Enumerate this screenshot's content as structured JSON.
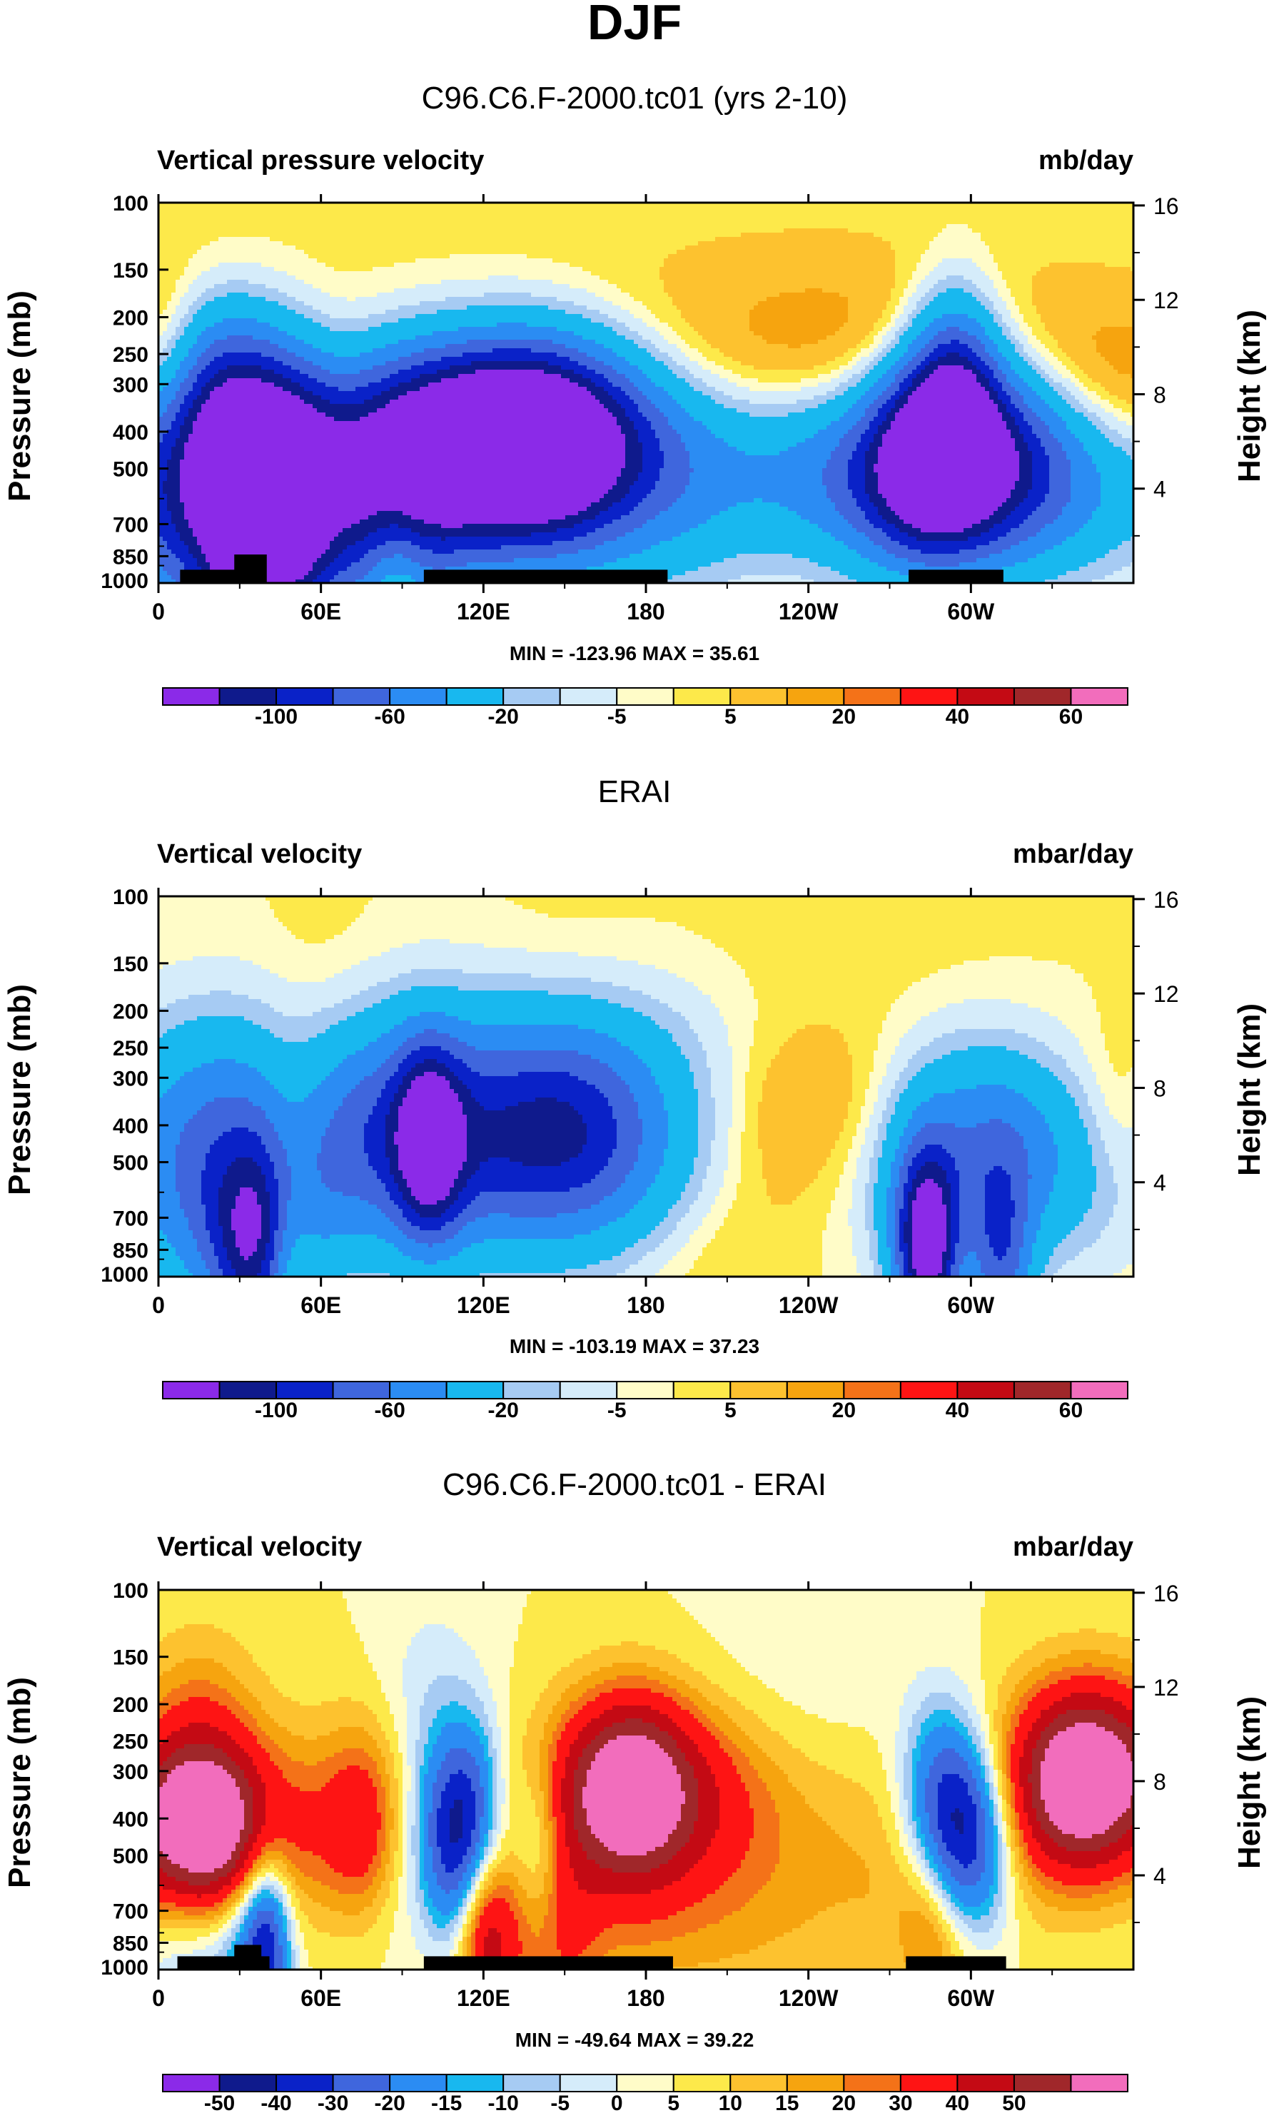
{
  "figure_title": "DJF",
  "chart_data": [
    {
      "type": "heatmap",
      "title": "C96.C6.F-2000.tc01 (yrs 2-10)",
      "left_label": "Vertical pressure velocity",
      "units": "mb/day",
      "ylabel": "Pressure (mb)",
      "ylabel_right": "Height (km)",
      "xlabel": "",
      "x_ticks": [
        "0",
        "60E",
        "120E",
        "180",
        "120W",
        "60W"
      ],
      "x_tick_values": [
        0,
        60,
        120,
        180,
        240,
        300
      ],
      "xlim": [
        0,
        360
      ],
      "y_ticks": [
        "100",
        "150",
        "200",
        "250",
        "300",
        "400",
        "500",
        "700",
        "850",
        "1000"
      ],
      "y_tick_values": [
        100,
        150,
        200,
        250,
        300,
        400,
        500,
        700,
        850,
        1000
      ],
      "ylim": [
        1000,
        100
      ],
      "y_right_ticks": [
        "16",
        "12",
        "8",
        "4"
      ],
      "y_right_values": [
        16,
        12,
        8,
        4
      ],
      "minmax": "MIN = -123.96  MAX =  35.61",
      "min": -123.96,
      "max": 35.61,
      "colorbar_labels": [
        "-100",
        "-60",
        "-20",
        "-5",
        "5",
        "20",
        "40",
        "60"
      ],
      "colorbar_colors": [
        "#8b2ae8",
        "#0f1a8c",
        "#0a22c8",
        "#3f66dd",
        "#2b8cf3",
        "#18b8ef",
        "#a6cbf3",
        "#d5ecfa",
        "#fffcc8",
        "#fde94a",
        "#fdc22f",
        "#f6a40f",
        "#f47218",
        "#fe1414",
        "#c40a14",
        "#a0272a",
        "#f26dbc"
      ],
      "colorbar_rows": 1,
      "blobs": [
        [
          40,
          450,
          75,
          1,
          -20
        ],
        [
          48,
          400,
          28,
          1,
          -20
        ],
        [
          38,
          380,
          52,
          1,
          -20
        ],
        [
          23,
          480,
          55,
          1,
          -5
        ],
        [
          20,
          750,
          55,
          1,
          -30
        ],
        [
          25,
          320,
          25,
          1,
          -60
        ],
        [
          36,
          800,
          30,
          1,
          -70
        ],
        [
          42,
          560,
          45,
          1,
          -20
        ],
        [
          32,
          850,
          12,
          1,
          -60
        ],
        [
          49,
          700,
          12,
          1,
          -40
        ],
        [
          70,
          350,
          50,
          1,
          8
        ],
        [
          70,
          450,
          28,
          1,
          12
        ],
        [
          68,
          380,
          18,
          1,
          20
        ],
        [
          88,
          900,
          11,
          1,
          30
        ],
        [
          2,
          330,
          16,
          1,
          15
        ],
        [
          3,
          300,
          15,
          1,
          20
        ],
        [
          120,
          460,
          250,
          1,
          -5
        ],
        [
          122,
          460,
          195,
          1,
          -20
        ],
        [
          120,
          480,
          145,
          1,
          -40
        ],
        [
          105,
          420,
          50,
          1,
          -80
        ],
        [
          140,
          400,
          45,
          1,
          -100
        ],
        [
          140,
          440,
          28,
          1,
          -40
        ],
        [
          160,
          850,
          60,
          1,
          -10
        ],
        [
          85,
          850,
          30,
          1,
          -20
        ],
        [
          92,
          800,
          20,
          1,
          -15
        ],
        [
          215,
          400,
          150,
          1,
          10
        ],
        [
          220,
          380,
          120,
          1,
          10
        ],
        [
          220,
          450,
          95,
          1,
          10
        ],
        [
          200,
          280,
          80,
          1,
          8
        ],
        [
          253,
          250,
          50,
          1,
          8
        ],
        [
          232,
          650,
          30,
          1,
          8
        ],
        [
          295,
          460,
          100,
          1,
          -20
        ],
        [
          300,
          520,
          90,
          1,
          -25
        ],
        [
          295,
          520,
          50,
          1,
          -60
        ],
        [
          286,
          450,
          22,
          1,
          -100
        ],
        [
          294,
          300,
          16,
          1,
          -70
        ],
        [
          310,
          400,
          28,
          1,
          -40
        ],
        [
          330,
          480,
          70,
          1,
          5
        ],
        [
          345,
          380,
          62,
          1,
          15
        ],
        [
          340,
          300,
          55,
          1,
          8
        ],
        [
          342,
          310,
          45,
          1,
          8
        ],
        [
          176,
          150,
          180,
          1,
          3
        ],
        [
          20,
          130,
          30,
          1,
          2
        ],
        [
          266,
          200,
          80,
          1,
          3
        ]
      ]
    },
    {
      "type": "heatmap",
      "title": "ERAI",
      "left_label": "Vertical velocity",
      "units": "mbar/day",
      "ylabel": "Pressure (mb)",
      "ylabel_right": "Height (km)",
      "xlabel": "",
      "x_ticks": [
        "0",
        "60E",
        "120E",
        "180",
        "120W",
        "60W"
      ],
      "x_tick_values": [
        0,
        60,
        120,
        180,
        240,
        300
      ],
      "xlim": [
        0,
        360
      ],
      "y_ticks": [
        "100",
        "150",
        "200",
        "250",
        "300",
        "400",
        "500",
        "700",
        "850",
        "1000"
      ],
      "y_tick_values": [
        100,
        150,
        200,
        250,
        300,
        400,
        500,
        700,
        850,
        1000
      ],
      "ylim": [
        1000,
        100
      ],
      "y_right_ticks": [
        "16",
        "12",
        "8",
        "4"
      ],
      "y_right_values": [
        16,
        12,
        8,
        4
      ],
      "minmax": "MIN = -103.19  MAX =  37.23",
      "min": -103.19,
      "max": 37.23,
      "colorbar_labels": [
        "-100",
        "-60",
        "-20",
        "-5",
        "5",
        "20",
        "40",
        "60"
      ],
      "colorbar_colors": [
        "#8b2ae8",
        "#0f1a8c",
        "#0a22c8",
        "#3f66dd",
        "#2b8cf3",
        "#18b8ef",
        "#a6cbf3",
        "#d5ecfa",
        "#fffcc8",
        "#fde94a",
        "#fdc22f",
        "#f6a40f",
        "#f47218",
        "#fe1414",
        "#c40a14",
        "#a0272a",
        "#f26dbc"
      ],
      "colorbar_rows": 1,
      "blobs": [
        [
          22,
          480,
          38,
          1,
          -25
        ],
        [
          20,
          300,
          30,
          1,
          -15
        ],
        [
          26,
          800,
          30,
          1,
          -30
        ],
        [
          36,
          880,
          15,
          1,
          -70
        ],
        [
          42,
          700,
          18,
          1,
          -20
        ],
        [
          48,
          500,
          15,
          1,
          12
        ],
        [
          50,
          380,
          15,
          1,
          12
        ],
        [
          46,
          880,
          10,
          1,
          35
        ],
        [
          50,
          780,
          10,
          1,
          12
        ],
        [
          125,
          480,
          125,
          1,
          -25
        ],
        [
          120,
          440,
          90,
          1,
          -35
        ],
        [
          150,
          400,
          30,
          1,
          -40
        ],
        [
          100,
          450,
          12,
          1,
          -90
        ],
        [
          95,
          350,
          30,
          1,
          -25
        ],
        [
          145,
          280,
          60,
          1,
          -15
        ],
        [
          120,
          680,
          150,
          1,
          -15
        ],
        [
          120,
          260,
          150,
          1,
          -10
        ],
        [
          205,
          430,
          75,
          1,
          6
        ],
        [
          235,
          400,
          55,
          1,
          12
        ],
        [
          240,
          330,
          40,
          1,
          12
        ],
        [
          230,
          550,
          45,
          1,
          12
        ],
        [
          213,
          700,
          40,
          1,
          8
        ],
        [
          200,
          850,
          30,
          1,
          6
        ],
        [
          295,
          500,
          45,
          1,
          -20
        ],
        [
          296,
          380,
          30,
          1,
          -20
        ],
        [
          315,
          450,
          25,
          1,
          -20
        ],
        [
          284,
          750,
          14,
          1,
          -60
        ],
        [
          284,
          880,
          10,
          1,
          -90
        ],
        [
          310,
          880,
          12,
          1,
          -70
        ],
        [
          340,
          560,
          30,
          1,
          -12
        ],
        [
          352,
          380,
          12,
          1,
          8
        ],
        [
          300,
          900,
          12,
          1,
          15
        ],
        [
          150,
          130,
          30,
          1,
          2
        ],
        [
          250,
          150,
          80,
          1,
          3
        ],
        [
          60,
          150,
          20,
          1,
          3
        ]
      ]
    },
    {
      "type": "heatmap",
      "title": "C96.C6.F-2000.tc01 - ERAI",
      "left_label": "Vertical velocity",
      "units": "mbar/day",
      "ylabel": "Pressure (mb)",
      "ylabel_right": "Height (km)",
      "xlabel": "",
      "x_ticks": [
        "0",
        "60E",
        "120E",
        "180",
        "120W",
        "60W"
      ],
      "x_tick_values": [
        0,
        60,
        120,
        180,
        240,
        300
      ],
      "xlim": [
        0,
        360
      ],
      "y_ticks": [
        "100",
        "150",
        "200",
        "250",
        "300",
        "400",
        "500",
        "700",
        "850",
        "1000"
      ],
      "y_tick_values": [
        100,
        150,
        200,
        250,
        300,
        400,
        500,
        700,
        850,
        1000
      ],
      "ylim": [
        1000,
        100
      ],
      "y_right_ticks": [
        "16",
        "12",
        "8",
        "4"
      ],
      "y_right_values": [
        16,
        12,
        8,
        4
      ],
      "minmax": "MIN = -49.64  MAX = 39.22",
      "min": -49.64,
      "max": 39.22,
      "colorbar_labels": [
        "-50",
        "-40",
        "-30",
        "-20",
        "-15",
        "-10",
        "-5",
        "0",
        "5",
        "10",
        "15",
        "20",
        "30",
        "40",
        "50"
      ],
      "colorbar_colors": [
        "#8b2ae8",
        "#0f1a8c",
        "#0a22c8",
        "#3f66dd",
        "#2b8cf3",
        "#18b8ef",
        "#a6cbf3",
        "#d5ecfa",
        "#fffcc8",
        "#fde94a",
        "#fdc22f",
        "#f6a40f",
        "#f47218",
        "#fe1414",
        "#c40a14",
        "#a0272a",
        "#f26dbc"
      ],
      "colorbar_rows": 1,
      "blobs": [
        [
          12,
          450,
          50,
          1,
          15
        ],
        [
          12,
          420,
          30,
          1,
          25
        ],
        [
          14,
          400,
          22,
          1,
          30
        ],
        [
          26,
          500,
          15,
          1,
          12
        ],
        [
          10,
          850,
          18,
          1,
          -15
        ],
        [
          30,
          830,
          12,
          1,
          -20
        ],
        [
          40,
          800,
          10,
          1,
          -20
        ],
        [
          40,
          900,
          8,
          1,
          -25
        ],
        [
          65,
          420,
          26,
          1,
          12
        ],
        [
          75,
          430,
          12,
          1,
          15
        ],
        [
          15,
          200,
          22,
          1,
          10
        ],
        [
          110,
          460,
          12,
          1,
          -35
        ],
        [
          118,
          360,
          12,
          1,
          -25
        ],
        [
          103,
          360,
          14,
          1,
          -15
        ],
        [
          140,
          430,
          10,
          1,
          -20
        ],
        [
          112,
          650,
          40,
          1,
          -8
        ],
        [
          100,
          180,
          20,
          1,
          -8
        ],
        [
          170,
          360,
          55,
          1,
          15
        ],
        [
          175,
          340,
          38,
          1,
          25
        ],
        [
          175,
          320,
          20,
          1,
          30
        ],
        [
          145,
          750,
          40,
          1,
          8
        ],
        [
          150,
          820,
          12,
          1,
          12
        ],
        [
          130,
          840,
          10,
          1,
          15
        ],
        [
          122,
          800,
          8,
          1,
          20
        ],
        [
          116,
          760,
          8,
          1,
          15
        ],
        [
          230,
          480,
          75,
          1,
          6
        ],
        [
          205,
          800,
          60,
          1,
          8
        ],
        [
          295,
          430,
          18,
          1,
          -20
        ],
        [
          300,
          430,
          14,
          1,
          -30
        ],
        [
          288,
          330,
          14,
          1,
          -25
        ],
        [
          300,
          700,
          14,
          1,
          -20
        ],
        [
          290,
          650,
          30,
          1,
          8
        ],
        [
          298,
          810,
          12,
          1,
          15
        ],
        [
          285,
          820,
          10,
          1,
          12
        ],
        [
          345,
          330,
          50,
          1,
          20
        ],
        [
          348,
          300,
          34,
          1,
          25
        ],
        [
          340,
          320,
          20,
          1,
          30
        ],
        [
          230,
          180,
          50,
          1,
          -4
        ],
        [
          80,
          250,
          30,
          1,
          3
        ],
        [
          200,
          250,
          40,
          1,
          3
        ]
      ]
    }
  ]
}
